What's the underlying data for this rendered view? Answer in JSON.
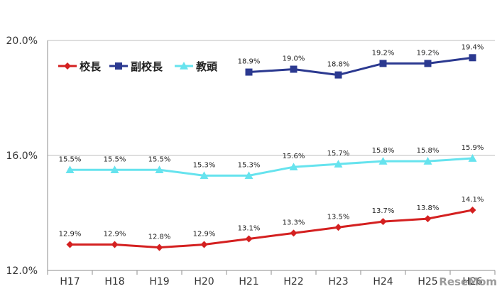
{
  "chart_data": {
    "type": "line",
    "categories": [
      "H17",
      "H18",
      "H19",
      "H20",
      "H21",
      "H22",
      "H23",
      "H24",
      "H25",
      "H26"
    ],
    "category_labels": [
      "H17",
      "H18",
      "H19",
      "H20",
      "H21",
      "H22",
      "H23",
      "H24",
      "H25",
      "H26"
    ],
    "ylim": [
      12.0,
      20.0
    ],
    "yticks": [
      12.0,
      16.0,
      20.0
    ],
    "ytick_labels": [
      "12.0%",
      "16.0%",
      "20.0%"
    ],
    "grid": "horizontal",
    "legend": "top-left",
    "series": [
      {
        "name": "校長",
        "color": "#d42020",
        "marker": "diamond",
        "values": [
          12.9,
          12.9,
          12.8,
          12.9,
          13.1,
          13.3,
          13.5,
          13.7,
          13.8,
          14.1
        ],
        "labels": [
          "12.9%",
          "12.9%",
          "12.8%",
          "12.9%",
          "13.1%",
          "13.3%",
          "13.5%",
          "13.7%",
          "13.8%",
          "14.1%"
        ]
      },
      {
        "name": "副校長",
        "color": "#2b3990",
        "marker": "square",
        "values": [
          null,
          null,
          null,
          null,
          18.9,
          19.0,
          18.8,
          19.2,
          19.2,
          19.4
        ],
        "labels": [
          null,
          null,
          null,
          null,
          "18.9%",
          "19.0%",
          "18.8%",
          "19.2%",
          "19.2%",
          "19.4%"
        ]
      },
      {
        "name": "教頭",
        "color": "#66e3ee",
        "marker": "triangle",
        "values": [
          15.5,
          15.5,
          15.5,
          15.3,
          15.3,
          15.6,
          15.7,
          15.8,
          15.8,
          15.9
        ],
        "labels": [
          "15.5%",
          "15.5%",
          "15.5%",
          "15.3%",
          "15.3%",
          "15.6%",
          "15.7%",
          "15.8%",
          "15.8%",
          "15.9%"
        ]
      }
    ]
  },
  "watermark": {
    "text": "ReseMom"
  }
}
